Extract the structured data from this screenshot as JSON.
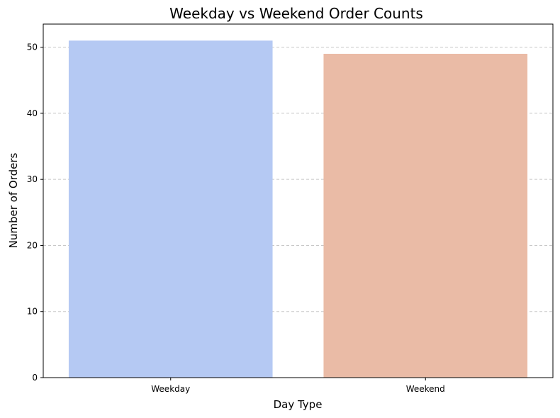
{
  "chart_data": {
    "type": "bar",
    "title": "Weekday vs Weekend Order Counts",
    "xlabel": "Day Type",
    "ylabel": "Number of Orders",
    "categories": [
      "Weekday",
      "Weekend"
    ],
    "values": [
      51,
      49
    ],
    "colors": [
      "#b5c9f3",
      "#eabba6"
    ],
    "ylim": [
      0,
      53.5
    ],
    "yticks": [
      0,
      10,
      20,
      30,
      40,
      50
    ],
    "grid": "y-dashed"
  }
}
